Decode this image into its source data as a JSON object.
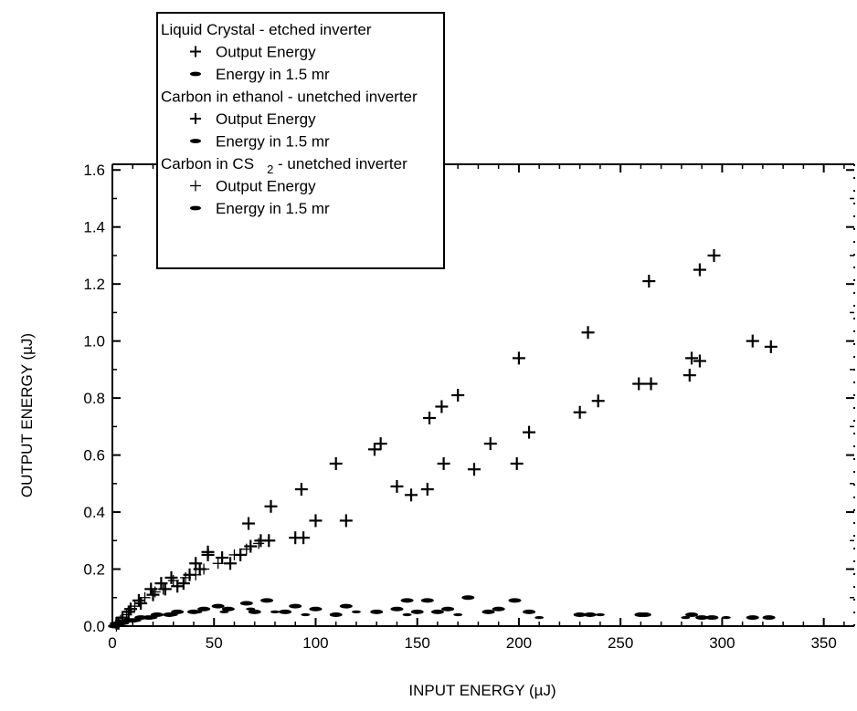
{
  "chart_data": {
    "type": "scatter",
    "xlabel": "INPUT ENERGY  (µJ)",
    "ylabel": "OUTPUT ENERGY (µJ)",
    "xlim": [
      0,
      365
    ],
    "ylim": [
      0,
      1.62
    ],
    "x_ticks": [
      "0",
      "50",
      "100",
      "150",
      "200",
      "250",
      "300",
      "350"
    ],
    "y_ticks": [
      "0.0",
      "0.2",
      "0.4",
      "0.6",
      "0.8",
      "1.0",
      "1.2",
      "1.4",
      "1.6"
    ],
    "legend": {
      "placement": "top-left",
      "entries": [
        {
          "text": "Liquid Crystal - etched inverter",
          "kind": "header"
        },
        {
          "text": "Output Energy",
          "kind": "plus"
        },
        {
          "text": "Energy in 1.5 mr",
          "kind": "dash"
        },
        {
          "text": "Carbon in ethanol - unetched inverter",
          "kind": "header"
        },
        {
          "text": "Output Energy",
          "kind": "plus"
        },
        {
          "text": "Energy in 1.5 mr",
          "kind": "dash"
        },
        {
          "text": "Carbon in CS",
          "sub": "2",
          "tail": " - unetched inverter",
          "kind": "header"
        },
        {
          "text": "Output Energy",
          "kind": "plus"
        },
        {
          "text": "Energy in 1.5 mr",
          "kind": "dash"
        }
      ]
    },
    "series": [
      {
        "name": "Liquid Crystal - etched inverter: Output Energy",
        "marker": "plus",
        "points": [
          [
            2,
            0.01
          ],
          [
            5,
            0.03
          ],
          [
            9,
            0.06
          ],
          [
            14,
            0.08
          ],
          [
            20,
            0.11
          ],
          [
            26,
            0.13
          ],
          [
            32,
            0.14
          ],
          [
            38,
            0.18
          ],
          [
            43,
            0.2
          ],
          [
            47,
            0.25
          ],
          [
            54,
            0.24
          ],
          [
            58,
            0.22
          ],
          [
            63,
            0.25
          ],
          [
            68,
            0.28
          ],
          [
            73,
            0.3
          ],
          [
            77,
            0.3
          ],
          [
            90,
            0.31
          ],
          [
            94,
            0.31
          ],
          [
            100,
            0.37
          ],
          [
            115,
            0.37
          ],
          [
            140,
            0.49
          ],
          [
            147,
            0.46
          ],
          [
            155,
            0.48
          ],
          [
            163,
            0.57
          ],
          [
            178,
            0.55
          ],
          [
            186,
            0.64
          ],
          [
            199,
            0.57
          ],
          [
            205,
            0.68
          ],
          [
            230,
            0.75
          ],
          [
            239,
            0.79
          ],
          [
            259,
            0.85
          ],
          [
            265,
            0.85
          ],
          [
            284,
            0.88
          ],
          [
            285,
            0.94
          ],
          [
            289,
            0.93
          ],
          [
            315,
            1.0
          ],
          [
            324,
            0.98
          ]
        ]
      },
      {
        "name": "Carbon in ethanol - unetched inverter: Output Energy",
        "marker": "plus",
        "points": [
          [
            3,
            0.01
          ],
          [
            8,
            0.05
          ],
          [
            13,
            0.09
          ],
          [
            19,
            0.13
          ],
          [
            24,
            0.15
          ],
          [
            29,
            0.17
          ],
          [
            35,
            0.15
          ],
          [
            41,
            0.22
          ],
          [
            47,
            0.26
          ],
          [
            67,
            0.36
          ],
          [
            78,
            0.42
          ],
          [
            93,
            0.48
          ],
          [
            110,
            0.57
          ],
          [
            129,
            0.62
          ],
          [
            132,
            0.64
          ],
          [
            156,
            0.73
          ],
          [
            162,
            0.77
          ],
          [
            170,
            0.81
          ],
          [
            200,
            0.94
          ],
          [
            234,
            1.03
          ],
          [
            264,
            1.21
          ],
          [
            289,
            1.25
          ],
          [
            296,
            1.3
          ]
        ]
      },
      {
        "name": "Carbon in CS2 - unetched inverter: Output Energy",
        "marker": "plus-thin",
        "points": [
          [
            2,
            0.0
          ],
          [
            4,
            0.02
          ],
          [
            7,
            0.04
          ],
          [
            11,
            0.07
          ],
          [
            16,
            0.1
          ],
          [
            21,
            0.12
          ],
          [
            25,
            0.13
          ],
          [
            30,
            0.16
          ],
          [
            36,
            0.17
          ],
          [
            41,
            0.18
          ],
          [
            45,
            0.2
          ],
          [
            52,
            0.22
          ],
          [
            60,
            0.25
          ],
          [
            66,
            0.27
          ],
          [
            72,
            0.29
          ]
        ]
      },
      {
        "name": "Liquid Crystal - etched inverter: Energy in 1.5 mr",
        "marker": "dash",
        "points": [
          [
            1,
            0.0
          ],
          [
            4,
            0.01
          ],
          [
            8,
            0.02
          ],
          [
            14,
            0.03
          ],
          [
            22,
            0.04
          ],
          [
            32,
            0.05
          ],
          [
            45,
            0.06
          ],
          [
            57,
            0.06
          ],
          [
            70,
            0.05
          ],
          [
            85,
            0.05
          ],
          [
            110,
            0.04
          ],
          [
            130,
            0.05
          ],
          [
            150,
            0.05
          ],
          [
            165,
            0.06
          ],
          [
            185,
            0.05
          ],
          [
            205,
            0.05
          ],
          [
            230,
            0.04
          ],
          [
            260,
            0.04
          ],
          [
            285,
            0.04
          ],
          [
            295,
            0.03
          ],
          [
            323,
            0.03
          ]
        ]
      },
      {
        "name": "Carbon in ethanol - unetched inverter: Energy in 1.5 mr",
        "marker": "dash",
        "points": [
          [
            3,
            0.01
          ],
          [
            10,
            0.02
          ],
          [
            18,
            0.03
          ],
          [
            28,
            0.04
          ],
          [
            40,
            0.05
          ],
          [
            52,
            0.07
          ],
          [
            66,
            0.08
          ],
          [
            76,
            0.09
          ],
          [
            90,
            0.07
          ],
          [
            100,
            0.06
          ],
          [
            115,
            0.07
          ],
          [
            140,
            0.06
          ],
          [
            145,
            0.09
          ],
          [
            155,
            0.09
          ],
          [
            160,
            0.05
          ],
          [
            175,
            0.1
          ],
          [
            190,
            0.06
          ],
          [
            198,
            0.09
          ],
          [
            235,
            0.04
          ],
          [
            262,
            0.04
          ],
          [
            290,
            0.03
          ],
          [
            315,
            0.03
          ]
        ]
      },
      {
        "name": "Carbon in CS2 - unetched inverter: Energy in 1.5 mr",
        "marker": "dash-thin",
        "points": [
          [
            2,
            0.0
          ],
          [
            6,
            0.01
          ],
          [
            12,
            0.02
          ],
          [
            20,
            0.03
          ],
          [
            30,
            0.04
          ],
          [
            42,
            0.05
          ],
          [
            55,
            0.05
          ],
          [
            68,
            0.06
          ],
          [
            80,
            0.05
          ],
          [
            95,
            0.04
          ],
          [
            120,
            0.05
          ],
          [
            145,
            0.04
          ],
          [
            170,
            0.04
          ],
          [
            210,
            0.03
          ],
          [
            240,
            0.04
          ],
          [
            282,
            0.03
          ],
          [
            302,
            0.03
          ]
        ]
      }
    ]
  }
}
